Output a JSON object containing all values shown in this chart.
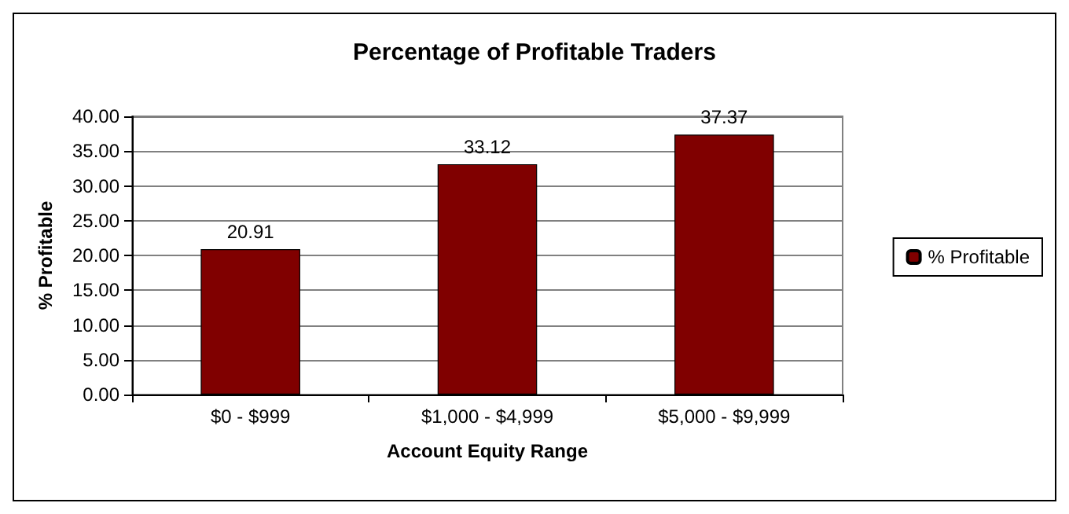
{
  "chart_data": {
    "type": "bar",
    "title": "Percentage of Profitable Traders",
    "xlabel": "Account Equity Range",
    "ylabel": "% Profitable",
    "categories": [
      "$0 - $999",
      "$1,000 - $4,999",
      "$5,000 - $9,999"
    ],
    "series": [
      {
        "name": "% Profitable",
        "color": "#800000",
        "values": [
          20.91,
          33.12,
          37.37
        ]
      }
    ],
    "ylim": [
      0,
      40
    ],
    "yticks": [
      {
        "value": 0,
        "label": "0.00"
      },
      {
        "value": 5,
        "label": "5.00"
      },
      {
        "value": 10,
        "label": "10.00"
      },
      {
        "value": 15,
        "label": "15.00"
      },
      {
        "value": 20,
        "label": "20.00"
      },
      {
        "value": 25,
        "label": "25.00"
      },
      {
        "value": 30,
        "label": "30.00"
      },
      {
        "value": 35,
        "label": "35.00"
      },
      {
        "value": 40,
        "label": "40.00"
      }
    ],
    "grid": "y",
    "legend": "right",
    "data_labels": true
  }
}
